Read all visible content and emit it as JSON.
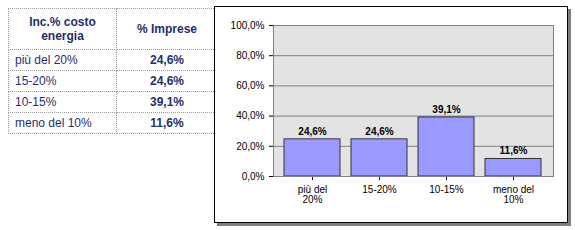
{
  "table": {
    "header": [
      "Inc.% costo energia",
      "% Imprese"
    ],
    "rows": [
      [
        "più del 20%",
        "24,6%"
      ],
      [
        "15-20%",
        "24,6%"
      ],
      [
        "10-15%",
        "39,1%"
      ],
      [
        "meno del 10%",
        "11,6%"
      ]
    ]
  },
  "chart_data": {
    "type": "bar",
    "categories": [
      "più del 20%",
      "15-20%",
      "10-15%",
      "meno del 10%"
    ],
    "values": [
      24.6,
      24.6,
      39.1,
      11.6
    ],
    "value_labels": [
      "24,6%",
      "24,6%",
      "39,1%",
      "11,6%"
    ],
    "color": "#9999ff",
    "ylim": [
      0,
      100
    ],
    "yticks": [
      {
        "value": 0,
        "label": "0,0%"
      },
      {
        "value": 20,
        "label": "20,0%"
      },
      {
        "value": 40,
        "label": "40,0%"
      },
      {
        "value": 60,
        "label": "60,0%"
      },
      {
        "value": 80,
        "label": "80,0%"
      },
      {
        "value": 100,
        "label": "100,0%"
      }
    ],
    "grid": true,
    "data_labels": true
  }
}
